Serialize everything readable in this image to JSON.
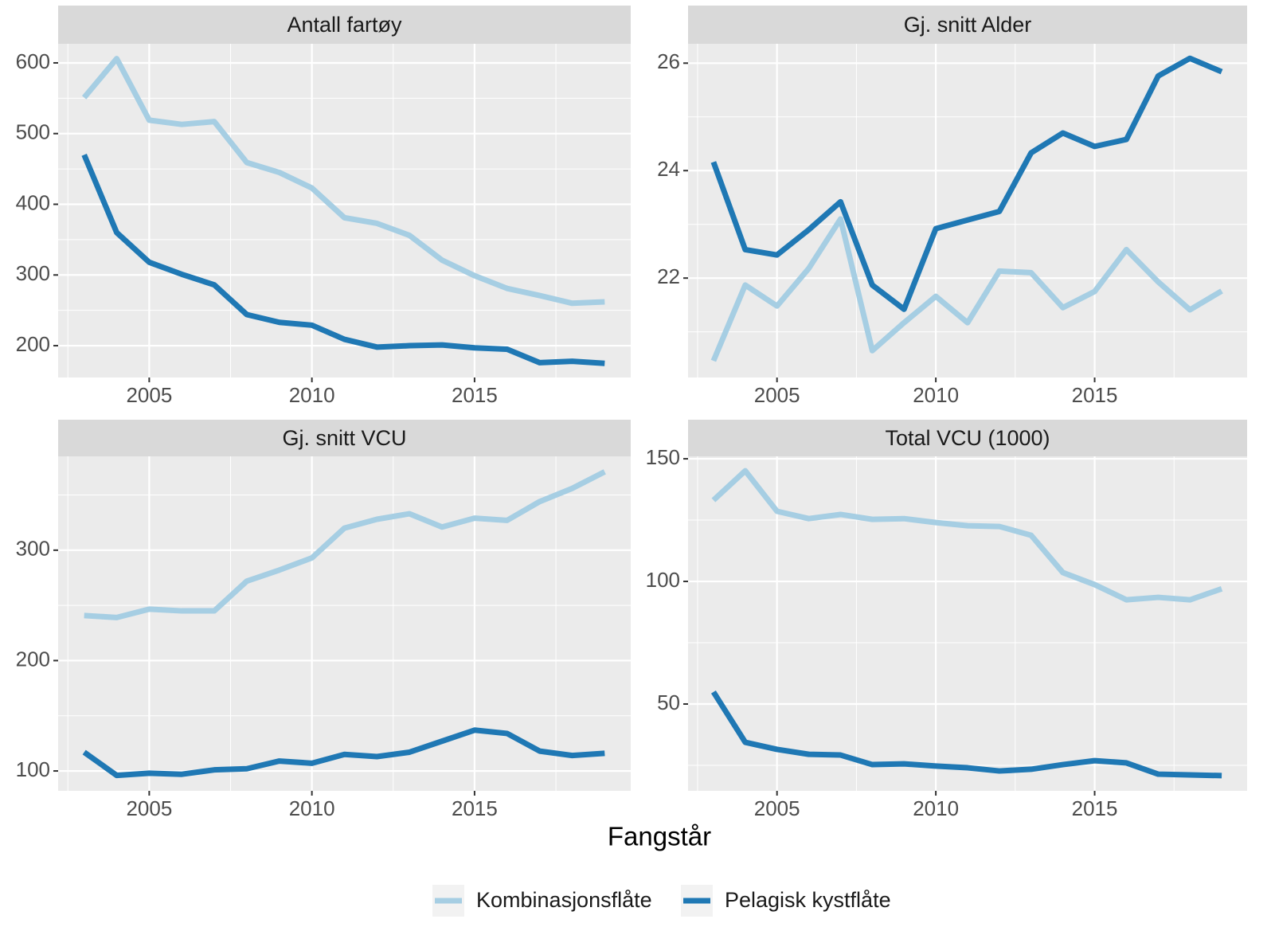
{
  "xlabel": "Fangstår",
  "chart_data": [
    {
      "type": "line",
      "title": "Antall fartøy",
      "x": [
        2003,
        2004,
        2005,
        2006,
        2007,
        2008,
        2009,
        2010,
        2011,
        2012,
        2013,
        2014,
        2015,
        2016,
        2017,
        2018,
        2019
      ],
      "series": [
        {
          "name": "Kombinasjonsflåte",
          "color": "#a6cee3",
          "values": [
            551,
            606,
            519,
            513,
            517,
            459,
            445,
            423,
            381,
            373,
            356,
            321,
            299,
            281,
            271,
            260,
            262
          ]
        },
        {
          "name": "Pelagisk kystflåte",
          "color": "#1f78b4",
          "values": [
            470,
            360,
            318,
            301,
            286,
            244,
            233,
            229,
            209,
            198,
            200,
            201,
            197,
            195,
            176,
            178,
            175
          ]
        }
      ],
      "xlim": [
        2002.2,
        2019.8
      ],
      "xticks": [
        2005,
        2010,
        2015
      ],
      "ylim": [
        155,
        627
      ],
      "yticks": [
        200,
        300,
        400,
        500,
        600
      ],
      "grid": true
    },
    {
      "type": "line",
      "title": "Gj. snitt Alder",
      "x": [
        2003,
        2004,
        2005,
        2006,
        2007,
        2008,
        2009,
        2010,
        2011,
        2012,
        2013,
        2014,
        2015,
        2016,
        2017,
        2018,
        2019
      ],
      "series": [
        {
          "name": "Kombinasjonsflåte",
          "color": "#a6cee3",
          "values": [
            20.46,
            21.87,
            21.48,
            22.18,
            23.1,
            20.65,
            21.17,
            21.66,
            21.17,
            22.13,
            22.1,
            21.45,
            21.75,
            22.53,
            21.93,
            21.41,
            21.76
          ]
        },
        {
          "name": "Pelagisk kystflåte",
          "color": "#1f78b4",
          "values": [
            24.16,
            22.53,
            22.43,
            22.9,
            23.42,
            21.87,
            21.42,
            22.92,
            23.08,
            23.24,
            24.33,
            24.7,
            24.45,
            24.58,
            25.76,
            26.09,
            25.84
          ]
        }
      ],
      "xlim": [
        2002.2,
        2019.8
      ],
      "xticks": [
        2005,
        2010,
        2015
      ],
      "ylim": [
        20.15,
        26.36
      ],
      "yticks": [
        22,
        24,
        26
      ],
      "grid": true
    },
    {
      "type": "line",
      "title": "Gj. snitt VCU",
      "x": [
        2003,
        2004,
        2005,
        2006,
        2007,
        2008,
        2009,
        2010,
        2011,
        2012,
        2013,
        2014,
        2015,
        2016,
        2017,
        2018,
        2019
      ],
      "series": [
        {
          "name": "Kombinasjonsflåte",
          "color": "#a6cee3",
          "values": [
            240.8,
            239,
            246.6,
            245,
            245,
            272,
            282,
            293,
            320,
            328,
            333,
            321,
            329,
            327,
            344,
            356,
            371
          ]
        },
        {
          "name": "Pelagisk kystflåte",
          "color": "#1f78b4",
          "values": [
            117,
            96,
            98,
            97,
            101,
            102,
            109,
            107,
            115,
            113,
            117,
            127,
            137,
            134,
            118,
            114,
            116
          ]
        }
      ],
      "xlim": [
        2002.2,
        2019.8
      ],
      "xticks": [
        2005,
        2010,
        2015
      ],
      "ylim": [
        82,
        385
      ],
      "yticks": [
        100,
        200,
        300
      ],
      "grid": true
    },
    {
      "type": "line",
      "title": "Total VCU (1000)",
      "x": [
        2003,
        2004,
        2005,
        2006,
        2007,
        2008,
        2009,
        2010,
        2011,
        2012,
        2013,
        2014,
        2015,
        2016,
        2017,
        2018,
        2019
      ],
      "series": [
        {
          "name": "Kombinasjonsflåte",
          "color": "#a6cee3",
          "values": [
            133.1,
            145.1,
            128.6,
            125.6,
            127.3,
            125.3,
            125.6,
            124,
            122.7,
            122.4,
            118.8,
            103.6,
            98.7,
            92.5,
            93.5,
            92.5,
            97
          ]
        },
        {
          "name": "Pelagisk kystflåte",
          "color": "#1f78b4",
          "values": [
            54.9,
            34.4,
            31.5,
            29.5,
            29.2,
            25.3,
            25.6,
            24.7,
            24,
            22.7,
            23.4,
            25.3,
            26.9,
            26,
            21.4,
            21.1,
            20.8
          ]
        }
      ],
      "xlim": [
        2002.2,
        2019.8
      ],
      "xticks": [
        2005,
        2010,
        2015
      ],
      "ylim": [
        14.6,
        151
      ],
      "yticks": [
        50,
        100,
        150
      ],
      "grid": true
    }
  ]
}
